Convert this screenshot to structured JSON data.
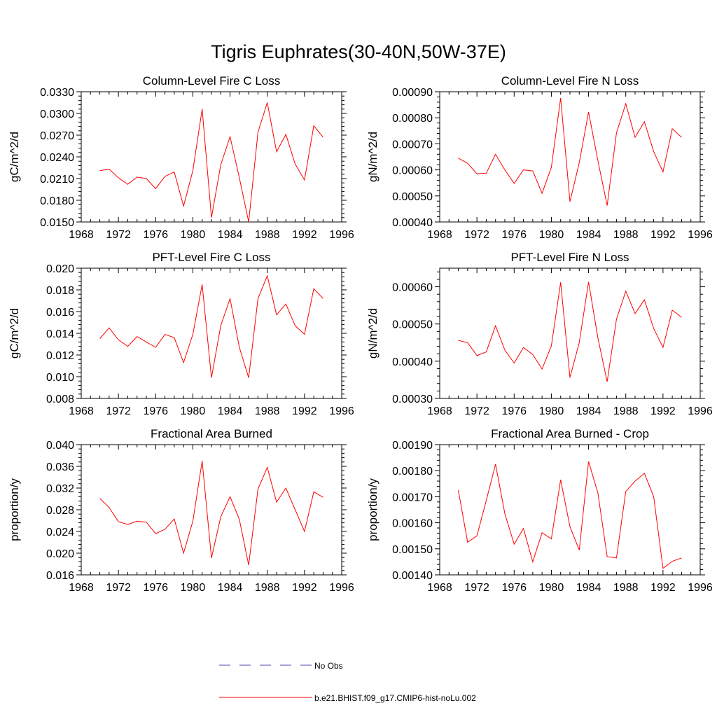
{
  "page_title": "Tigris Euphrates(30-40N,50W-37E)",
  "line_color": "#ff0000",
  "legend": {
    "items": [
      {
        "label": "No Obs",
        "color": "#4a4ab0",
        "dash": true
      },
      {
        "label": "b.e21.BHIST.f09_g17.CMIP6-hist-noLu.002",
        "color": "#ff0000",
        "dash": false
      }
    ]
  },
  "chart_data": [
    {
      "type": "line",
      "title": "Column-Level Fire C Loss",
      "ylabel": "gC/m^2/d",
      "xlim": [
        1968,
        1996
      ],
      "xticks": [
        "1968",
        "1972",
        "1976",
        "1980",
        "1984",
        "1988",
        "1992",
        "1996"
      ],
      "ylim": [
        0.015,
        0.033
      ],
      "yticks": [
        "0.0150",
        "0.0180",
        "0.0210",
        "0.0240",
        "0.0270",
        "0.0300",
        "0.0330"
      ],
      "grid": false,
      "series": [
        {
          "name": "b.e21.BHIST.f09_g17.CMIP6-hist-noLu.002",
          "x": [
            1970,
            1971,
            1972,
            1973,
            1974,
            1975,
            1976,
            1977,
            1978,
            1979,
            1980,
            1981,
            1982,
            1983,
            1984,
            1985,
            1986,
            1987,
            1988,
            1989,
            1990,
            1991,
            1992,
            1993,
            1994
          ],
          "y": [
            0.0221,
            0.0223,
            0.0211,
            0.0202,
            0.0212,
            0.021,
            0.0196,
            0.0213,
            0.0219,
            0.0172,
            0.0221,
            0.0306,
            0.0156,
            0.0229,
            0.0268,
            0.0211,
            0.015,
            0.0274,
            0.0315,
            0.0247,
            0.0271,
            0.023,
            0.0208,
            0.0283,
            0.0267
          ]
        }
      ]
    },
    {
      "type": "line",
      "title": "Column-Level Fire N Loss",
      "ylabel": "gN/m^2/d",
      "xlim": [
        1968,
        1996
      ],
      "xticks": [
        "1968",
        "1972",
        "1976",
        "1980",
        "1984",
        "1988",
        "1992",
        "1996"
      ],
      "ylim": [
        0.0004,
        0.0009
      ],
      "yticks": [
        "0.00040",
        "0.00050",
        "0.00060",
        "0.00070",
        "0.00080",
        "0.00090"
      ],
      "grid": false,
      "series": [
        {
          "name": "b.e21.BHIST.f09_g17.CMIP6-hist-noLu.002",
          "x": [
            1970,
            1971,
            1972,
            1973,
            1974,
            1975,
            1976,
            1977,
            1978,
            1979,
            1980,
            1981,
            1982,
            1983,
            1984,
            1985,
            1986,
            1987,
            1988,
            1989,
            1990,
            1991,
            1992,
            1993,
            1994
          ],
          "y": [
            0.000645,
            0.000625,
            0.000585,
            0.000587,
            0.00066,
            0.0006,
            0.000548,
            0.0006,
            0.000596,
            0.00051,
            0.00061,
            0.000876,
            0.000478,
            0.000628,
            0.000822,
            0.000636,
            0.000463,
            0.000742,
            0.000854,
            0.000725,
            0.000785,
            0.00067,
            0.000592,
            0.000758,
            0.000725
          ]
        }
      ]
    },
    {
      "type": "line",
      "title": "PFT-Level Fire C Loss",
      "ylabel": "gC/m^2/d",
      "xlim": [
        1968,
        1996
      ],
      "xticks": [
        "1968",
        "1972",
        "1976",
        "1980",
        "1984",
        "1988",
        "1992",
        "1996"
      ],
      "ylim": [
        0.008,
        0.02
      ],
      "yticks": [
        "0.008",
        "0.010",
        "0.012",
        "0.014",
        "0.016",
        "0.018",
        "0.020"
      ],
      "grid": false,
      "series": [
        {
          "name": "b.e21.BHIST.f09_g17.CMIP6-hist-noLu.002",
          "x": [
            1970,
            1971,
            1972,
            1973,
            1974,
            1975,
            1976,
            1977,
            1978,
            1979,
            1980,
            1981,
            1982,
            1983,
            1984,
            1985,
            1986,
            1987,
            1988,
            1989,
            1990,
            1991,
            1992,
            1993,
            1994
          ],
          "y": [
            0.0135,
            0.0145,
            0.0134,
            0.0128,
            0.0137,
            0.0132,
            0.0127,
            0.0139,
            0.0136,
            0.0113,
            0.0139,
            0.0185,
            0.0099,
            0.0147,
            0.0172,
            0.0127,
            0.0099,
            0.0172,
            0.0193,
            0.0157,
            0.0167,
            0.0147,
            0.0139,
            0.0181,
            0.0172
          ]
        }
      ]
    },
    {
      "type": "line",
      "title": "PFT-Level Fire N Loss",
      "ylabel": "gN/m^2/d",
      "xlim": [
        1968,
        1996
      ],
      "xticks": [
        "1968",
        "1972",
        "1976",
        "1980",
        "1984",
        "1988",
        "1992",
        "1996"
      ],
      "ylim": [
        0.0003,
        0.00065
      ],
      "yticks": [
        "0.00030",
        "0.00040",
        "0.00050",
        "0.00060"
      ],
      "grid": false,
      "series": [
        {
          "name": "b.e21.BHIST.f09_g17.CMIP6-hist-noLu.002",
          "x": [
            1970,
            1971,
            1972,
            1973,
            1974,
            1975,
            1976,
            1977,
            1978,
            1979,
            1980,
            1981,
            1982,
            1983,
            1984,
            1985,
            1986,
            1987,
            1988,
            1989,
            1990,
            1991,
            1992,
            1993,
            1994
          ],
          "y": [
            0.000456,
            0.00045,
            0.000415,
            0.000425,
            0.000495,
            0.00043,
            0.000395,
            0.000437,
            0.000418,
            0.000379,
            0.000441,
            0.000612,
            0.000356,
            0.00045,
            0.000613,
            0.000463,
            0.000345,
            0.000513,
            0.000588,
            0.000528,
            0.000565,
            0.000488,
            0.000437,
            0.000537,
            0.000518
          ]
        }
      ]
    },
    {
      "type": "line",
      "title": "Fractional Area Burned",
      "ylabel": "proportion/y",
      "xlim": [
        1968,
        1996
      ],
      "xticks": [
        "1968",
        "1972",
        "1976",
        "1980",
        "1984",
        "1988",
        "1992",
        "1996"
      ],
      "ylim": [
        0.016,
        0.04
      ],
      "yticks": [
        "0.016",
        "0.020",
        "0.024",
        "0.028",
        "0.032",
        "0.036",
        "0.040"
      ],
      "grid": false,
      "series": [
        {
          "name": "b.e21.BHIST.f09_g17.CMIP6-hist-noLu.002",
          "x": [
            1970,
            1971,
            1972,
            1973,
            1974,
            1975,
            1976,
            1977,
            1978,
            1979,
            1980,
            1981,
            1982,
            1983,
            1984,
            1985,
            1986,
            1987,
            1988,
            1989,
            1990,
            1991,
            1992,
            1993,
            1994
          ],
          "y": [
            0.0301,
            0.0284,
            0.0258,
            0.0253,
            0.0259,
            0.0257,
            0.0236,
            0.0244,
            0.0263,
            0.02,
            0.0259,
            0.037,
            0.0191,
            0.0267,
            0.0304,
            0.0262,
            0.0178,
            0.0318,
            0.0358,
            0.0294,
            0.032,
            0.028,
            0.024,
            0.0313,
            0.0303
          ]
        }
      ]
    },
    {
      "type": "line",
      "title": "Fractional Area Burned - Crop",
      "ylabel": "proportion/y",
      "xlim": [
        1968,
        1996
      ],
      "xticks": [
        "1968",
        "1972",
        "1976",
        "1980",
        "1984",
        "1988",
        "1992",
        "1996"
      ],
      "ylim": [
        0.0014,
        0.0019
      ],
      "yticks": [
        "0.00140",
        "0.00150",
        "0.00160",
        "0.00170",
        "0.00180",
        "0.00190"
      ],
      "grid": false,
      "series": [
        {
          "name": "b.e21.BHIST.f09_g17.CMIP6-hist-noLu.002",
          "x": [
            1970,
            1971,
            1972,
            1973,
            1974,
            1975,
            1976,
            1977,
            1978,
            1979,
            1980,
            1981,
            1982,
            1983,
            1984,
            1985,
            1986,
            1987,
            1988,
            1989,
            1990,
            1991,
            1992,
            1993,
            1994
          ],
          "y": [
            0.001725,
            0.001525,
            0.00155,
            0.001685,
            0.001825,
            0.001635,
            0.001518,
            0.001578,
            0.00145,
            0.001562,
            0.001538,
            0.001765,
            0.001585,
            0.001495,
            0.001835,
            0.001715,
            0.00147,
            0.001465,
            0.00172,
            0.00176,
            0.00179,
            0.0017,
            0.001425,
            0.001452,
            0.001465
          ]
        }
      ]
    }
  ]
}
